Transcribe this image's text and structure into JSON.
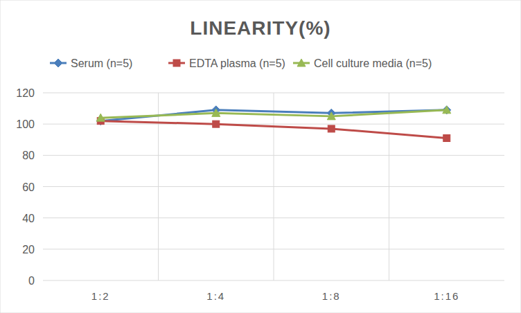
{
  "chart_data": {
    "type": "line",
    "title": "LINEARITY(%)",
    "categories": [
      "1:2",
      "1:4",
      "1:8",
      "1:16"
    ],
    "series": [
      {
        "name": "Serum (n=5)",
        "color": "#4a7ebb",
        "marker": "diamond",
        "values": [
          102,
          109,
          107,
          109
        ]
      },
      {
        "name": "EDTA plasma (n=5)",
        "color": "#be4b48",
        "marker": "square",
        "values": [
          102,
          100,
          97,
          91
        ]
      },
      {
        "name": "Cell culture media (n=5)",
        "color": "#98b954",
        "marker": "triangle",
        "values": [
          104,
          107,
          105,
          109
        ]
      }
    ],
    "ylim": [
      0,
      120
    ],
    "yticks": [
      0,
      20,
      40,
      60,
      80,
      100,
      120
    ],
    "grid": true,
    "legend": "top"
  }
}
